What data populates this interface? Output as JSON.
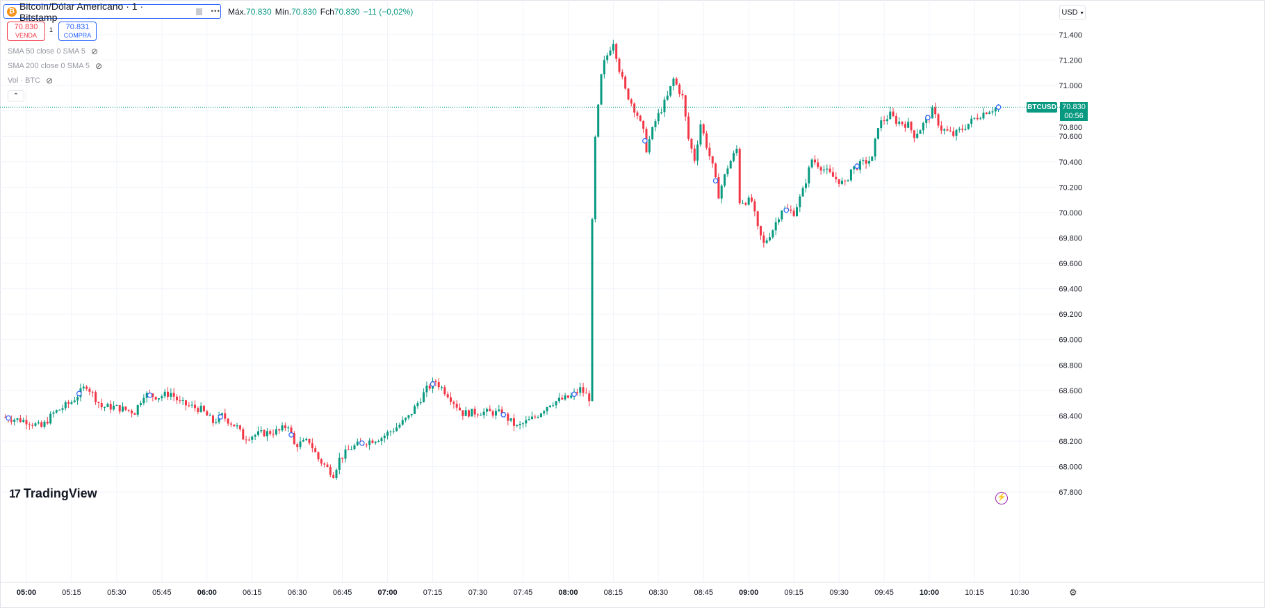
{
  "header": {
    "symbol_title": "Bitcoin/Dólar Americano · 1 · Bitstamp",
    "more_label": "•••",
    "ohlc": {
      "high_label": "Máx.",
      "high": "70.830",
      "low_label": "Mín.",
      "low": "70.830",
      "close_label": "Fch",
      "close": "70.830",
      "change": "−11 (−0,02%)"
    }
  },
  "trade": {
    "sell_price": "70.830",
    "sell_label": "VENDA",
    "spread": "1",
    "buy_price": "70.831",
    "buy_label": "COMPRA"
  },
  "indicators": [
    "SMA 50 close 0 SMA 5",
    "SMA 200 close 0 SMA 5",
    "Vol · BTC"
  ],
  "collapse_label": "⌃",
  "currency": "USD",
  "price_tag": {
    "symbol": "BTCUSD",
    "price": "70.830",
    "countdown": "00:56"
  },
  "branding": "TradingView",
  "colors": {
    "up": "#089981",
    "down": "#f23645",
    "grid": "#f0f3fa",
    "marker": "#2962ff"
  },
  "chart_data": {
    "type": "candlestick",
    "interval_minutes": 1,
    "y_ticks": [
      "71.400",
      "71.200",
      "71.000",
      "70.800",
      "70.600",
      "70.400",
      "70.200",
      "70.000",
      "69.800",
      "69.600",
      "69.400",
      "69.200",
      "69.000",
      "68.800",
      "68.600",
      "68.400",
      "68.200",
      "68.000",
      "67.800"
    ],
    "ylim": [
      67.8,
      71.4
    ],
    "x_ticks": [
      "05:00",
      "05:15",
      "05:30",
      "05:45",
      "06:00",
      "06:15",
      "06:30",
      "06:45",
      "07:00",
      "07:15",
      "07:30",
      "07:45",
      "08:00",
      "08:15",
      "08:30",
      "08:45",
      "09:00",
      "09:15",
      "09:30",
      "09:45",
      "10:00",
      "10:15",
      "10:30"
    ],
    "bold_ticks": [
      "05:00",
      "06:00",
      "07:00",
      "08:00",
      "09:00",
      "10:00"
    ],
    "last_price": 70.83,
    "anchors_minutes_from_0500_price": [
      [
        -8,
        68.39
      ],
      [
        0,
        68.36
      ],
      [
        5,
        68.31
      ],
      [
        9,
        68.42
      ],
      [
        15,
        68.51
      ],
      [
        20,
        68.64
      ],
      [
        25,
        68.47
      ],
      [
        29,
        68.47
      ],
      [
        36,
        68.43
      ],
      [
        39,
        68.57
      ],
      [
        44,
        68.55
      ],
      [
        48,
        68.58
      ],
      [
        51,
        68.5
      ],
      [
        58,
        68.45
      ],
      [
        62,
        68.35
      ],
      [
        65,
        68.4
      ],
      [
        70,
        68.31
      ],
      [
        72,
        68.23
      ],
      [
        78,
        68.26
      ],
      [
        84,
        68.28
      ],
      [
        87,
        68.33
      ],
      [
        89,
        68.17
      ],
      [
        94,
        68.2
      ],
      [
        97,
        68.06
      ],
      [
        102,
        67.94
      ],
      [
        104,
        68.06
      ],
      [
        108,
        68.15
      ],
      [
        112,
        68.19
      ],
      [
        118,
        68.23
      ],
      [
        123,
        68.31
      ],
      [
        127,
        68.39
      ],
      [
        133,
        68.61
      ],
      [
        136,
        68.67
      ],
      [
        140,
        68.57
      ],
      [
        145,
        68.42
      ],
      [
        151,
        68.43
      ],
      [
        158,
        68.42
      ],
      [
        163,
        68.31
      ],
      [
        169,
        68.39
      ],
      [
        174,
        68.5
      ],
      [
        181,
        68.55
      ],
      [
        184,
        68.61
      ],
      [
        187,
        68.54
      ],
      [
        188,
        69.92
      ],
      [
        189,
        70.58
      ],
      [
        191,
        71.07
      ],
      [
        192,
        71.18
      ],
      [
        194,
        71.3
      ],
      [
        195,
        71.35
      ],
      [
        197,
        71.13
      ],
      [
        199,
        70.96
      ],
      [
        203,
        70.77
      ],
      [
        205,
        70.63
      ],
      [
        206,
        70.5
      ],
      [
        209,
        70.72
      ],
      [
        213,
        70.91
      ],
      [
        215,
        71.05
      ],
      [
        218,
        70.91
      ],
      [
        220,
        70.58
      ],
      [
        222,
        70.42
      ],
      [
        224,
        70.7
      ],
      [
        228,
        70.36
      ],
      [
        230,
        70.14
      ],
      [
        233,
        70.36
      ],
      [
        236,
        70.5
      ],
      [
        237,
        70.09
      ],
      [
        241,
        70.09
      ],
      [
        243,
        69.87
      ],
      [
        245,
        69.75
      ],
      [
        248,
        69.87
      ],
      [
        251,
        70.03
      ],
      [
        255,
        70.0
      ],
      [
        258,
        70.17
      ],
      [
        261,
        70.42
      ],
      [
        265,
        70.34
      ],
      [
        268,
        70.28
      ],
      [
        272,
        70.22
      ],
      [
        274,
        70.34
      ],
      [
        278,
        70.39
      ],
      [
        281,
        70.42
      ],
      [
        283,
        70.69
      ],
      [
        287,
        70.77
      ],
      [
        289,
        70.72
      ],
      [
        293,
        70.69
      ],
      [
        295,
        70.61
      ],
      [
        297,
        70.66
      ],
      [
        301,
        70.8
      ],
      [
        304,
        70.66
      ],
      [
        308,
        70.61
      ],
      [
        311,
        70.66
      ],
      [
        315,
        70.74
      ],
      [
        319,
        70.8
      ],
      [
        323,
        70.83
      ]
    ]
  }
}
